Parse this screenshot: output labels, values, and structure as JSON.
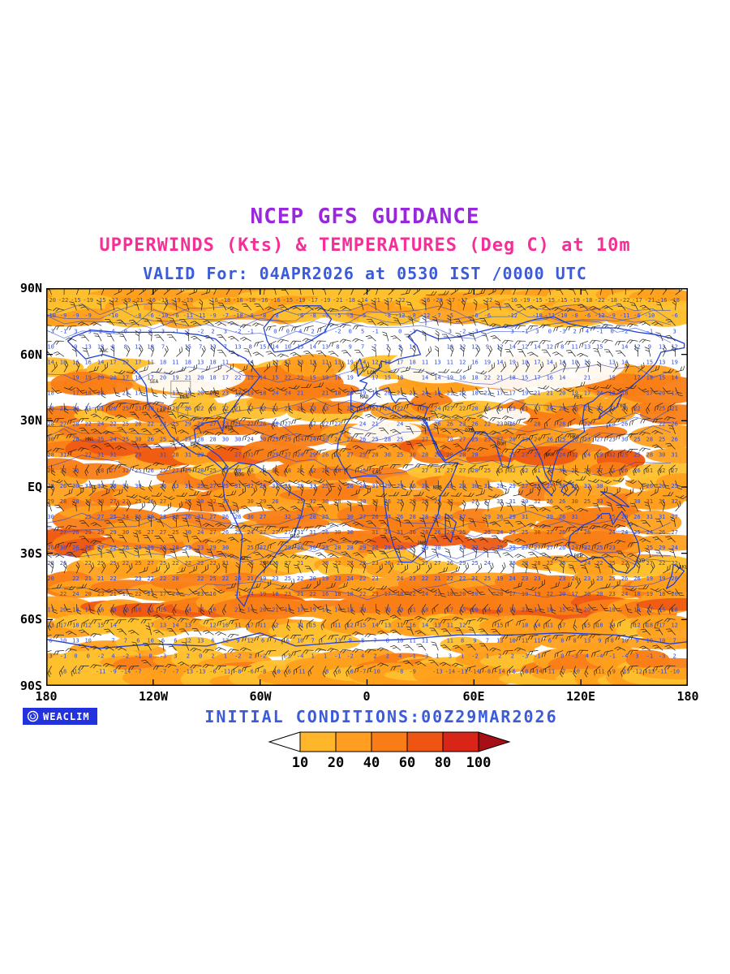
{
  "header": {
    "line1": "NCEP GFS GUIDANCE",
    "line2": "UPPERWINDS (Kts) & TEMPERATURES (Deg C) at 10m",
    "line3": "VALID For: 04APR2026 at 0530 IST /0000 UTC"
  },
  "axes": {
    "lat": [
      "90N",
      "60N",
      "30N",
      "EQ",
      "30S",
      "60S",
      "90S"
    ],
    "lon": [
      "180",
      "120W",
      "60W",
      "0",
      "60E",
      "120E",
      "180"
    ]
  },
  "footer": {
    "logo_text": "WEACLIM",
    "initial_conditions": "INITIAL CONDITIONS:00Z29MAR2026"
  },
  "colorbar": {
    "labels": [
      "10",
      "20",
      "40",
      "60",
      "80",
      "100"
    ],
    "segment_colors": [
      "#FFB62A",
      "#FF9E20",
      "#F97C17",
      "#EE5412",
      "#D92518"
    ],
    "left_arrow_color": "#FFFFFF",
    "right_arrow_color": "#A50F15"
  },
  "colors": {
    "title_purple": "#9928DC",
    "subtitle_pink": "#F43098",
    "valid_blue": "#3A5BDC",
    "logo_background": "#2233DD",
    "map_frame": "#000000"
  },
  "chart_data": {
    "type": "map",
    "projection": "equirectangular",
    "title": "NCEP GFS GUIDANCE",
    "subtitle": "UPPERWINDS (Kts) & TEMPERATURES (Deg C) at 10m",
    "valid": "04APR2026 at 0530 IST /0000 UTC",
    "initial_conditions": "00Z29MAR2026",
    "variables": [
      "upper winds (kts) as wind barbs",
      "temperature (deg C) at 10m as blue numbers and orange shading"
    ],
    "shading_levels": [
      10,
      20,
      40,
      60,
      80,
      100
    ],
    "shading_colors": [
      "#FFC02E",
      "#FFA01E",
      "#F97E16",
      "#EE5A12",
      "#D92E17",
      "#A50F15"
    ],
    "lat_ticks": [
      "90N",
      "60N",
      "30N",
      "EQ",
      "30S",
      "60S",
      "90S"
    ],
    "lon_ticks": [
      "180",
      "120W",
      "60W",
      "0",
      "60E",
      "120E",
      "180"
    ],
    "lat_range": [
      -90,
      90
    ],
    "lon_range": [
      -180,
      180
    ],
    "coastline_color": "#2040D8",
    "barb_color": "#222222",
    "value_color": "#2A4ADF",
    "grid": {
      "lat_step_deg": 7,
      "lon_step_deg": 7
    },
    "station_labels": [
      {
        "id": "ANC",
        "lon": -150,
        "lat": 61
      },
      {
        "id": "SEA",
        "lon": -122,
        "lat": 47
      },
      {
        "id": "LAX",
        "lon": -118,
        "lat": 34
      },
      {
        "id": "DEN",
        "lon": -105,
        "lat": 40
      },
      {
        "id": "ORD",
        "lon": -88,
        "lat": 42
      },
      {
        "id": "JFK",
        "lon": -74,
        "lat": 41
      },
      {
        "id": "MIA",
        "lon": -80,
        "lat": 26
      },
      {
        "id": "MEX",
        "lon": -99,
        "lat": 19
      },
      {
        "id": "HNL",
        "lon": -158,
        "lat": 21
      },
      {
        "id": "BOG",
        "lon": -74,
        "lat": 5
      },
      {
        "id": "LIM",
        "lon": -77,
        "lat": -12
      },
      {
        "id": "SCL",
        "lon": -71,
        "lat": -33
      },
      {
        "id": "BUE",
        "lon": -58,
        "lat": -35
      },
      {
        "id": "RIO",
        "lon": -43,
        "lat": -23
      },
      {
        "id": "LON",
        "lon": 0,
        "lat": 51
      },
      {
        "id": "MAD",
        "lon": -4,
        "lat": 40
      },
      {
        "id": "CAI",
        "lon": 31,
        "lat": 30
      },
      {
        "id": "LAG",
        "lon": 3,
        "lat": 6
      },
      {
        "id": "NBO",
        "lon": 37,
        "lat": -1
      },
      {
        "id": "JNB",
        "lon": 28,
        "lat": -26
      },
      {
        "id": "DXB",
        "lon": 55,
        "lat": 25
      },
      {
        "id": "DEL",
        "lon": 77,
        "lat": 28
      },
      {
        "id": "BOM",
        "lon": 73,
        "lat": 19
      },
      {
        "id": "BKK",
        "lon": 100,
        "lat": 14
      },
      {
        "id": "SIN",
        "lon": 104,
        "lat": 1
      },
      {
        "id": "HKG",
        "lon": 114,
        "lat": 22
      },
      {
        "id": "PEK",
        "lon": 116,
        "lat": 40
      },
      {
        "id": "TYO",
        "lon": 140,
        "lat": 36
      },
      {
        "id": "SYD",
        "lon": 151,
        "lat": -34
      },
      {
        "id": "PER",
        "lon": 116,
        "lat": -32
      },
      {
        "id": "AKL",
        "lon": 175,
        "lat": -37
      }
    ]
  }
}
